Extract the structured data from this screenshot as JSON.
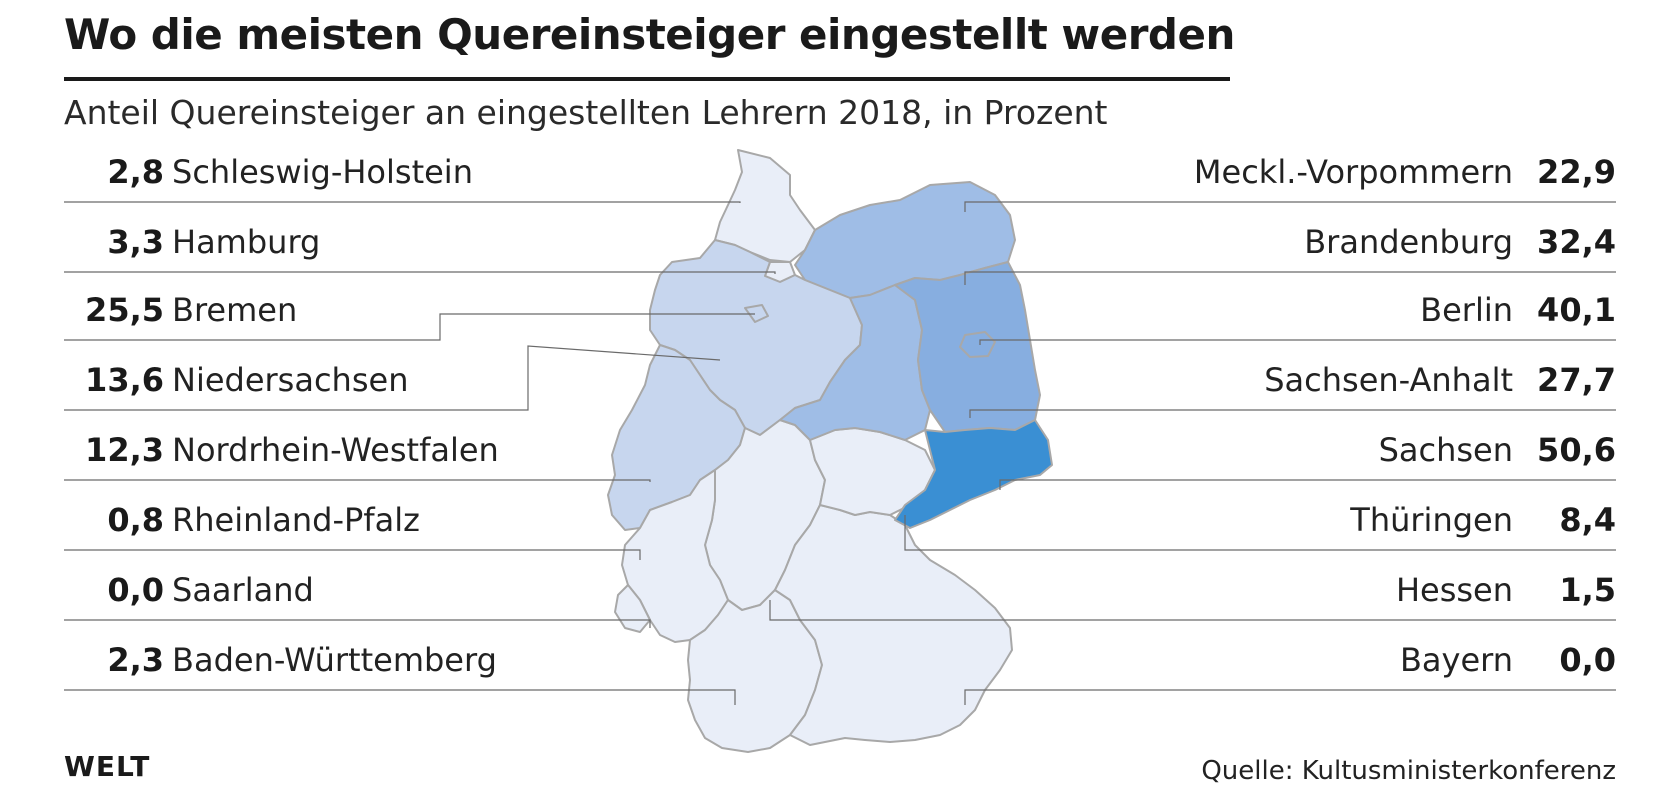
{
  "title": "Wo die meisten Quereinsteiger eingestellt werden",
  "subtitle": "Anteil Quereinsteiger an eingestellten Lehrern 2018, in Prozent",
  "brand": "WELT",
  "source": "Quelle: Kultusministerkonferenz",
  "colors": {
    "very_light": "#e9eef8",
    "light": "#c7d6ee",
    "medium": "#9fbde6",
    "medium_dark": "#87aee0",
    "dark": "#3a8fd3",
    "border": "#a8a8a8",
    "leader": "#6a6a6a"
  },
  "left_states": [
    {
      "value": "2,8",
      "name": "Schleswig-Holstein"
    },
    {
      "value": "3,3",
      "name": "Hamburg"
    },
    {
      "value": "25,5",
      "name": "Bremen"
    },
    {
      "value": "13,6",
      "name": "Niedersachsen"
    },
    {
      "value": "12,3",
      "name": "Nordrhein-Westfalen"
    },
    {
      "value": "0,8",
      "name": "Rheinland-Pfalz"
    },
    {
      "value": "0,0",
      "name": "Saarland"
    },
    {
      "value": "2,3",
      "name": "Baden-Württemberg"
    }
  ],
  "right_states": [
    {
      "value": "22,9",
      "name": "Meckl.-Vorpommern"
    },
    {
      "value": "32,4",
      "name": "Brandenburg"
    },
    {
      "value": "40,1",
      "name": "Berlin"
    },
    {
      "value": "27,7",
      "name": "Sachsen-Anhalt"
    },
    {
      "value": "50,6",
      "name": "Sachsen"
    },
    {
      "value": "8,4",
      "name": "Thüringen"
    },
    {
      "value": "1,5",
      "name": "Hessen"
    },
    {
      "value": "0,0",
      "name": "Bayern"
    }
  ]
}
